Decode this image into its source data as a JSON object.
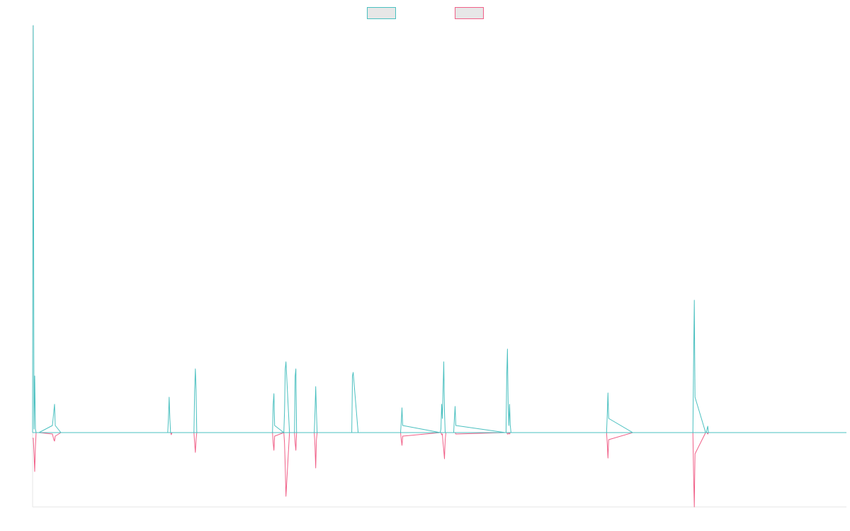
{
  "chart_data": {
    "type": "line",
    "title": "",
    "xlabel": "",
    "ylabel": "",
    "grid": false,
    "legend": "top-center",
    "xlim": [
      0,
      1150
    ],
    "ylim": [
      -105,
      575
    ],
    "series": [
      {
        "color": "#4bc0c0",
        "legend_fill": "#e7e7e7",
        "direction": "up",
        "x": [
          0,
          1,
          2,
          3,
          4,
          5,
          6,
          9,
          28,
          30,
          31,
          32,
          40,
          44,
          51,
          52,
          53,
          104,
          190,
          191,
          192,
          193,
          194,
          195,
          196,
          197,
          214,
          215,
          228,
          229,
          230,
          231,
          232,
          242,
          290,
          339,
          340,
          341,
          342,
          355,
          356,
          357,
          358,
          363,
          370,
          371,
          372,
          373,
          389,
          398,
          399,
          400,
          401,
          402,
          451,
          452,
          453,
          460,
          495,
          520,
          521,
          522,
          523,
          576,
          577,
          578,
          579,
          580,
          581,
          582,
          583,
          584,
          595,
          596,
          597,
          598,
          668,
          669,
          670,
          671,
          672,
          673,
          674,
          675,
          676,
          811,
          812,
          813,
          814,
          848,
          932,
          933,
          934,
          935,
          936,
          951,
          952,
          953,
          954,
          955,
          1048,
          1150
        ],
        "y": [
          0,
          575,
          5,
          80,
          5,
          0,
          0,
          0,
          10,
          30,
          40,
          10,
          0,
          0,
          0,
          0,
          0,
          0,
          0,
          0,
          20,
          50,
          20,
          0,
          0,
          0,
          0,
          0,
          0,
          60,
          90,
          60,
          0,
          0,
          0,
          0,
          40,
          55,
          10,
          0,
          30,
          90,
          100,
          0,
          0,
          80,
          90,
          0,
          0,
          0,
          30,
          65,
          30,
          0,
          0,
          80,
          85,
          0,
          0,
          0,
          15,
          35,
          10,
          0,
          5,
          40,
          20,
          60,
          100,
          30,
          0,
          0,
          0,
          20,
          37,
          10,
          0,
          0,
          80,
          118,
          40,
          10,
          40,
          10,
          0,
          0,
          25,
          56,
          20,
          0,
          0,
          0,
          100,
          187,
          50,
          0,
          0,
          5,
          9,
          0,
          0,
          0
        ]
      },
      {
        "color": "#f06088",
        "legend_fill": "#e7e7e7",
        "direction": "down",
        "x": [
          0,
          1,
          2,
          3,
          4,
          5,
          6,
          9,
          28,
          30,
          31,
          32,
          40,
          44,
          51,
          52,
          53,
          104,
          190,
          191,
          192,
          193,
          194,
          195,
          196,
          197,
          214,
          215,
          228,
          229,
          230,
          231,
          232,
          242,
          290,
          339,
          340,
          341,
          342,
          355,
          356,
          357,
          358,
          363,
          370,
          371,
          372,
          373,
          389,
          398,
          399,
          400,
          401,
          402,
          451,
          452,
          453,
          460,
          495,
          520,
          521,
          522,
          523,
          576,
          577,
          578,
          579,
          580,
          581,
          582,
          583,
          584,
          595,
          596,
          597,
          598,
          668,
          669,
          670,
          671,
          672,
          673,
          674,
          675,
          676,
          811,
          812,
          813,
          814,
          848,
          932,
          933,
          934,
          935,
          936,
          951,
          952,
          953,
          954,
          955,
          1048,
          1150
        ],
        "y": [
          8,
          8,
          30,
          55,
          20,
          0,
          0,
          0,
          2,
          10,
          12,
          5,
          0,
          0,
          0,
          0,
          0,
          0,
          0,
          0,
          0,
          0,
          0,
          0,
          3,
          0,
          0,
          0,
          0,
          15,
          28,
          10,
          0,
          0,
          0,
          0,
          15,
          25,
          5,
          0,
          15,
          50,
          90,
          0,
          0,
          15,
          25,
          0,
          0,
          0,
          20,
          50,
          10,
          0,
          0,
          0,
          0,
          0,
          0,
          0,
          10,
          18,
          5,
          0,
          0,
          3,
          2,
          15,
          25,
          37,
          10,
          0,
          0,
          0,
          0,
          2,
          0,
          0,
          0,
          2,
          2,
          0,
          2,
          0,
          0,
          0,
          15,
          36,
          10,
          0,
          0,
          0,
          60,
          105,
          30,
          0,
          0,
          0,
          2,
          0,
          0,
          0
        ]
      }
    ]
  }
}
